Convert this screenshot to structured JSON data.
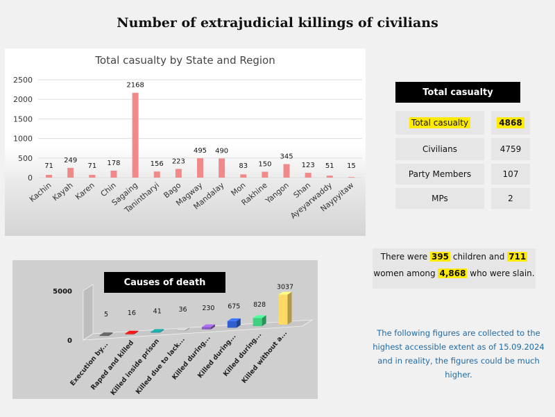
{
  "page_title": "Number of extrajudicial killings of civilians",
  "summary": {
    "header": "Total casualty",
    "rows": [
      {
        "label": "Total casualty",
        "value": "4868",
        "highlight": true
      },
      {
        "label": "Civilians",
        "value": "4759",
        "highlight": false
      },
      {
        "label": "Party Members",
        "value": "107",
        "highlight": false
      },
      {
        "label": "MPs",
        "value": "2",
        "highlight": false
      }
    ]
  },
  "note": {
    "text_1": "There were ",
    "children": "395",
    "text_2": " children and ",
    "women": "711",
    "text_3": "women among ",
    "total": "4,868",
    "text_4": " who were slain."
  },
  "disclaimer": "The following figures are collected to the highest accessible extent as of 15.09.2024 and in reality, the figures could be much higher.",
  "chart_data": [
    {
      "type": "bar",
      "title": "Total casualty by State and Region",
      "categories": [
        "Kachin",
        "Kayah",
        "Karen",
        "Chin",
        "Sagaing",
        "Tanintharyi",
        "Bago",
        "Magway",
        "Mandalay",
        "Mon",
        "Rakhine",
        "Yangon",
        "Shan",
        "Ayeyarwaddy",
        "Naypyitaw"
      ],
      "values": [
        71,
        249,
        71,
        178,
        2168,
        156,
        223,
        495,
        490,
        83,
        150,
        345,
        123,
        51,
        15
      ],
      "data_labels": true,
      "ylim": [
        0,
        2500
      ],
      "yticks": [
        0,
        500,
        1000,
        1500,
        2000,
        2500
      ],
      "bar_color": "#f08a8a",
      "grid": true
    },
    {
      "type": "bar",
      "title": "Causes of death",
      "categories": [
        "Execution by...",
        "Raped and killed",
        "Killed inside prison",
        "Killed due to lack...",
        "Killed during...",
        "Killed during...",
        "Killed during...",
        "Killed without a..."
      ],
      "values": [
        5,
        16,
        41,
        36,
        230,
        675,
        828,
        3037
      ],
      "data_labels": true,
      "ylim": [
        0,
        5000
      ],
      "yticks": [
        0,
        5000
      ],
      "colors": [
        "#555555",
        "#cc1111",
        "#138f8f",
        "#b0b0b0",
        "#8a5ac2",
        "#2f5fd0",
        "#40d080",
        "#ffd966"
      ],
      "grid": false
    }
  ]
}
